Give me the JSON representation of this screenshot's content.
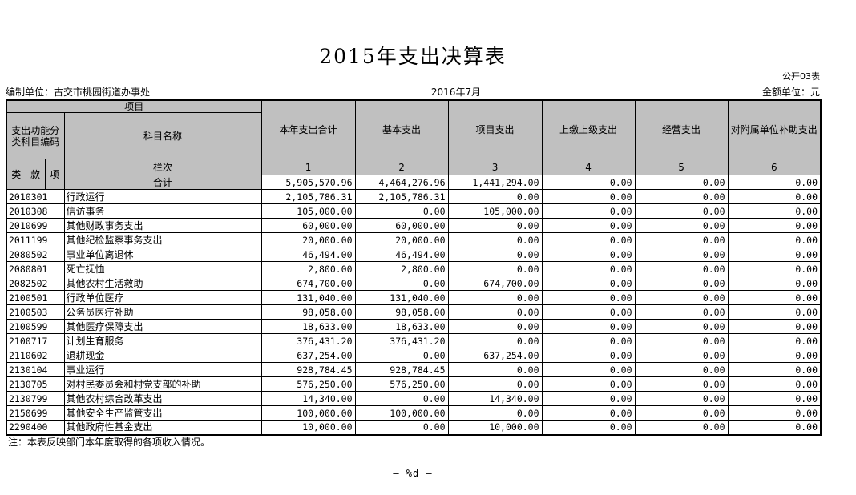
{
  "page": {
    "title": "2015年支出决算表",
    "doc_code": "公开03表",
    "prepared_by": "编制单位：古交市桃园街道办事处",
    "period": "2016年7月",
    "unit": "金额单位：元",
    "note": "注：本表反映部门本年度取得的各项收入情况。",
    "page_footer": "— %d —"
  },
  "colors": {
    "header_bg": "#c0c0c0",
    "border": "#000000",
    "background": "#ffffff"
  },
  "table": {
    "group_header": "项目",
    "code_header": "支出功能分类科目编码",
    "code_sub_headers": [
      "类",
      "款",
      "项"
    ],
    "name_header": "科目名称",
    "amount_headers": [
      "本年支出合计",
      "基本支出",
      "项目支出",
      "上缴上级支出",
      "经营支出",
      "对附属单位补助支出"
    ],
    "lanci_label": "栏次",
    "lanci_numbers": [
      "1",
      "2",
      "3",
      "4",
      "5",
      "6"
    ],
    "total_label": "合计",
    "total_values": [
      "5,905,570.96",
      "4,464,276.96",
      "1,441,294.00",
      "0.00",
      "0.00",
      "0.00"
    ],
    "rows": [
      {
        "code": "2010301",
        "name": "行政运行",
        "values": [
          "2,105,786.31",
          "2,105,786.31",
          "0.00",
          "0.00",
          "0.00",
          "0.00"
        ]
      },
      {
        "code": "2010308",
        "name": "信访事务",
        "values": [
          "105,000.00",
          "0.00",
          "105,000.00",
          "0.00",
          "0.00",
          "0.00"
        ]
      },
      {
        "code": "2010699",
        "name": "其他财政事务支出",
        "values": [
          "60,000.00",
          "60,000.00",
          "0.00",
          "0.00",
          "0.00",
          "0.00"
        ]
      },
      {
        "code": "2011199",
        "name": "其他纪检监察事务支出",
        "values": [
          "20,000.00",
          "20,000.00",
          "0.00",
          "0.00",
          "0.00",
          "0.00"
        ]
      },
      {
        "code": "2080502",
        "name": "事业单位离退休",
        "values": [
          "46,494.00",
          "46,494.00",
          "0.00",
          "0.00",
          "0.00",
          "0.00"
        ]
      },
      {
        "code": "2080801",
        "name": "死亡抚恤",
        "values": [
          "2,800.00",
          "2,800.00",
          "0.00",
          "0.00",
          "0.00",
          "0.00"
        ]
      },
      {
        "code": "2082502",
        "name": "其他农村生活救助",
        "values": [
          "674,700.00",
          "0.00",
          "674,700.00",
          "0.00",
          "0.00",
          "0.00"
        ]
      },
      {
        "code": "2100501",
        "name": "行政单位医疗",
        "values": [
          "131,040.00",
          "131,040.00",
          "0.00",
          "0.00",
          "0.00",
          "0.00"
        ]
      },
      {
        "code": "2100503",
        "name": "公务员医疗补助",
        "values": [
          "98,058.00",
          "98,058.00",
          "0.00",
          "0.00",
          "0.00",
          "0.00"
        ]
      },
      {
        "code": "2100599",
        "name": "其他医疗保障支出",
        "values": [
          "18,633.00",
          "18,633.00",
          "0.00",
          "0.00",
          "0.00",
          "0.00"
        ]
      },
      {
        "code": "2100717",
        "name": "计划生育服务",
        "values": [
          "376,431.20",
          "376,431.20",
          "0.00",
          "0.00",
          "0.00",
          "0.00"
        ]
      },
      {
        "code": "2110602",
        "name": "退耕现金",
        "values": [
          "637,254.00",
          "0.00",
          "637,254.00",
          "0.00",
          "0.00",
          "0.00"
        ]
      },
      {
        "code": "2130104",
        "name": "事业运行",
        "values": [
          "928,784.45",
          "928,784.45",
          "0.00",
          "0.00",
          "0.00",
          "0.00"
        ]
      },
      {
        "code": "2130705",
        "name": "对村民委员会和村党支部的补助",
        "values": [
          "576,250.00",
          "576,250.00",
          "0.00",
          "0.00",
          "0.00",
          "0.00"
        ]
      },
      {
        "code": "2130799",
        "name": "其他农村综合改革支出",
        "values": [
          "14,340.00",
          "0.00",
          "14,340.00",
          "0.00",
          "0.00",
          "0.00"
        ]
      },
      {
        "code": "2150699",
        "name": "其他安全生产监管支出",
        "values": [
          "100,000.00",
          "100,000.00",
          "0.00",
          "0.00",
          "0.00",
          "0.00"
        ]
      },
      {
        "code": "2290400",
        "name": "其他政府性基金支出",
        "values": [
          "10,000.00",
          "0.00",
          "10,000.00",
          "0.00",
          "0.00",
          "0.00"
        ]
      }
    ]
  }
}
